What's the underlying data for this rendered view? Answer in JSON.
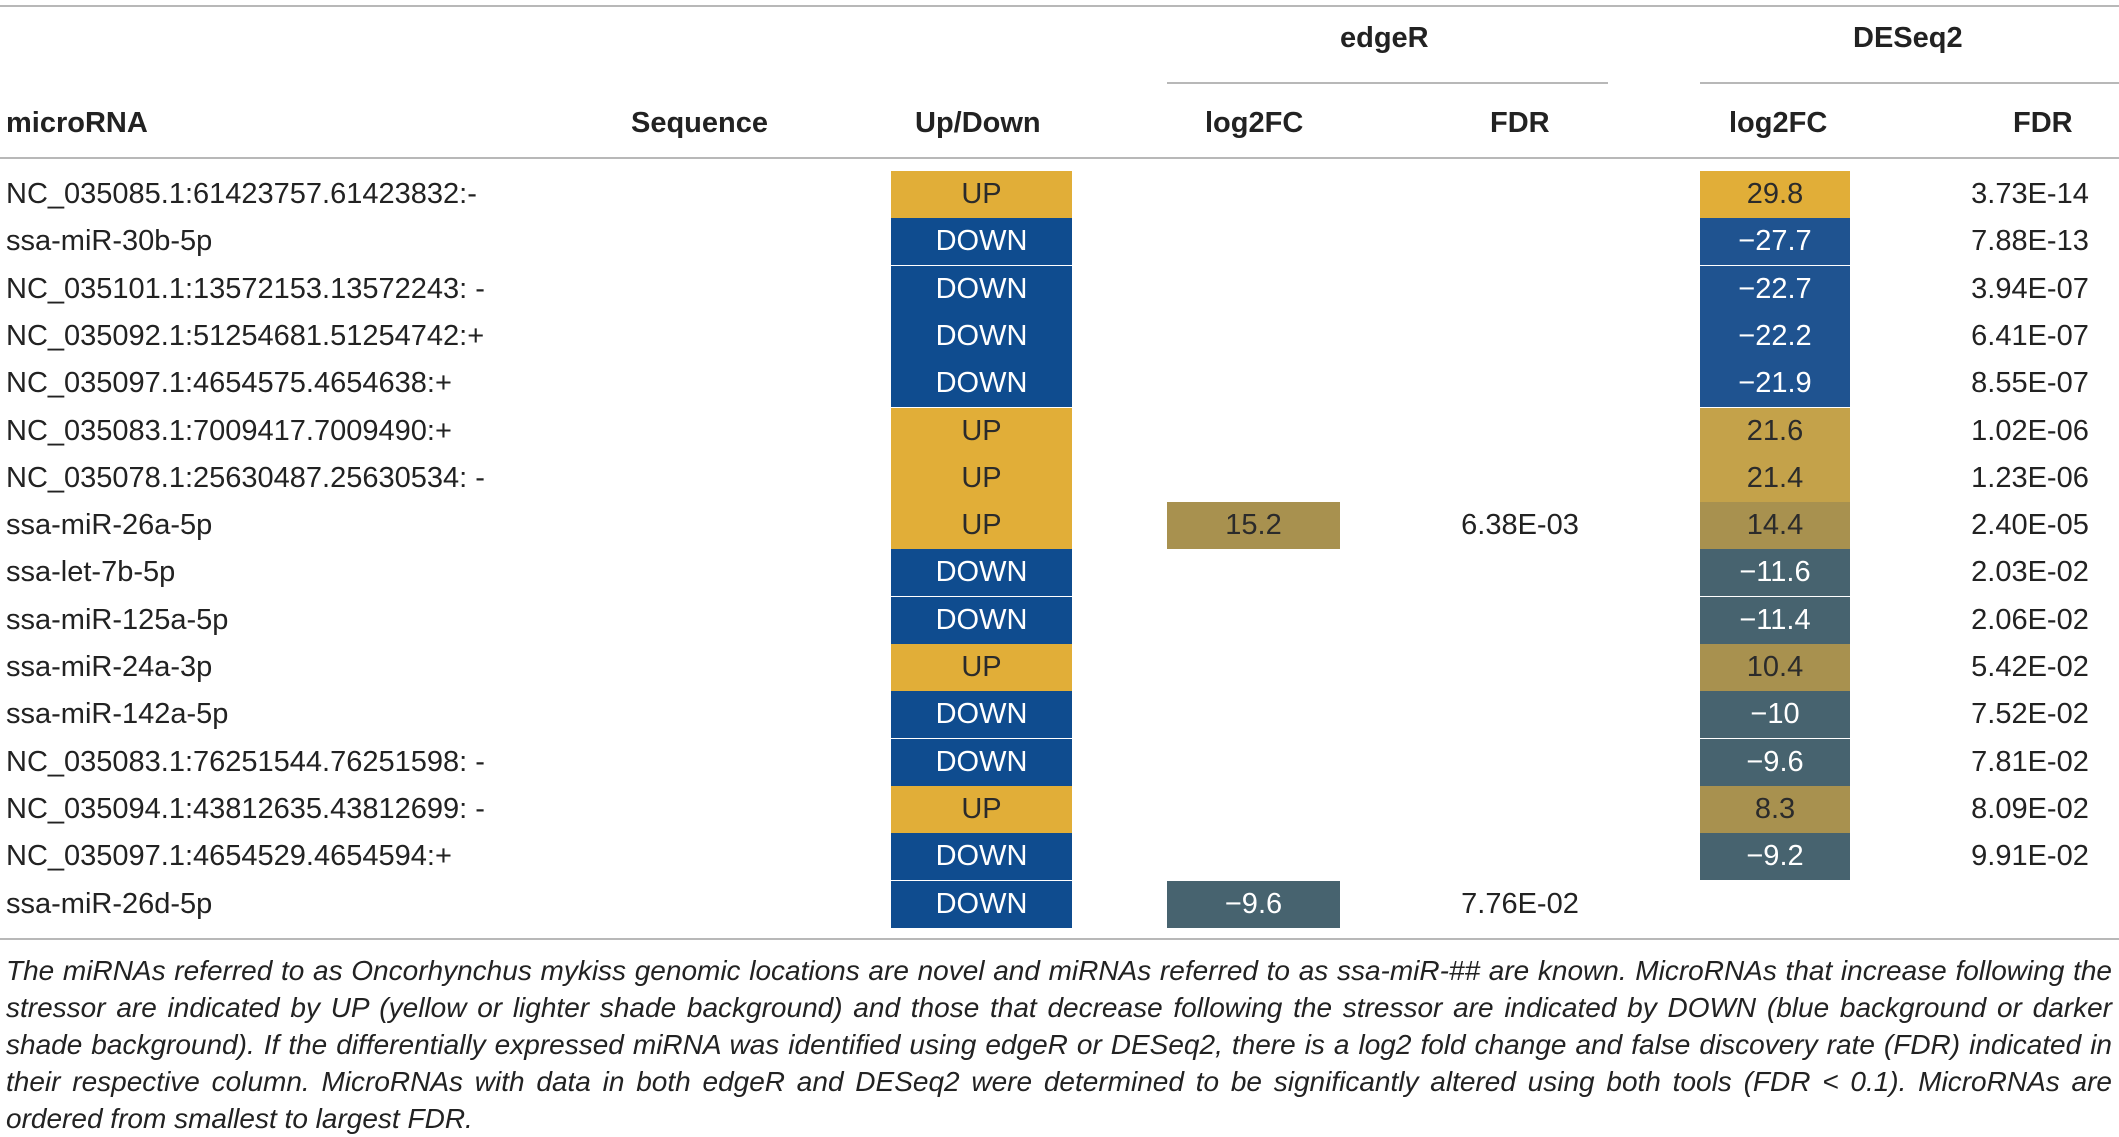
{
  "colors": {
    "up": "#e1ae38",
    "down": "#0f4c8f",
    "deseq_pos_strong": "#e1ae38",
    "deseq_pos_mid": "#c4a24a",
    "deseq_pos_light": "#a8914f",
    "deseq_neg_strong": "#1f5390",
    "deseq_neg_light": "#47636f",
    "edger_pos": "#a8914f",
    "edger_neg": "#47636f"
  },
  "header": {
    "group_edger": "edgeR",
    "group_deseq2": "DESeq2",
    "col_microrna": "microRNA",
    "col_sequence": "Sequence",
    "col_updown": "Up/Down",
    "col_edger_log2fc": "log2FC",
    "col_edger_fdr": "FDR",
    "col_deseq_log2fc": "log2FC",
    "col_deseq_fdr": "FDR"
  },
  "rows": [
    {
      "name": "NC_035085.1:61423757.61423832:-",
      "dir": "UP",
      "edger_log2fc": "",
      "edger_fdr": "",
      "deseq_log2fc": "29.8",
      "deseq_fdr": "3.73E-14",
      "deseq_shade": "deseq_pos_strong"
    },
    {
      "name": "ssa-miR-30b-5p",
      "dir": "DOWN",
      "edger_log2fc": "",
      "edger_fdr": "",
      "deseq_log2fc": "−27.7",
      "deseq_fdr": "7.88E-13",
      "deseq_shade": "deseq_neg_strong"
    },
    {
      "name": "NC_035101.1:13572153.13572243: -",
      "dir": "DOWN",
      "edger_log2fc": "",
      "edger_fdr": "",
      "deseq_log2fc": "−22.7",
      "deseq_fdr": "3.94E-07",
      "deseq_shade": "deseq_neg_strong"
    },
    {
      "name": "NC_035092.1:51254681.51254742:+",
      "dir": "DOWN",
      "edger_log2fc": "",
      "edger_fdr": "",
      "deseq_log2fc": "−22.2",
      "deseq_fdr": "6.41E-07",
      "deseq_shade": "deseq_neg_strong"
    },
    {
      "name": "NC_035097.1:4654575.4654638:+",
      "dir": "DOWN",
      "edger_log2fc": "",
      "edger_fdr": "",
      "deseq_log2fc": "−21.9",
      "deseq_fdr": "8.55E-07",
      "deseq_shade": "deseq_neg_strong"
    },
    {
      "name": "NC_035083.1:7009417.7009490:+",
      "dir": "UP",
      "edger_log2fc": "",
      "edger_fdr": "",
      "deseq_log2fc": "21.6",
      "deseq_fdr": "1.02E-06",
      "deseq_shade": "deseq_pos_mid"
    },
    {
      "name": "NC_035078.1:25630487.25630534: -",
      "dir": "UP",
      "edger_log2fc": "",
      "edger_fdr": "",
      "deseq_log2fc": "21.4",
      "deseq_fdr": "1.23E-06",
      "deseq_shade": "deseq_pos_mid"
    },
    {
      "name": "ssa-miR-26a-5p",
      "dir": "UP",
      "edger_log2fc": "15.2",
      "edger_fdr": "6.38E-03",
      "deseq_log2fc": "14.4",
      "deseq_fdr": "2.40E-05",
      "deseq_shade": "deseq_pos_light",
      "edger_shade": "edger_pos"
    },
    {
      "name": "ssa-let-7b-5p",
      "dir": "DOWN",
      "edger_log2fc": "",
      "edger_fdr": "",
      "deseq_log2fc": "−11.6",
      "deseq_fdr": "2.03E-02",
      "deseq_shade": "deseq_neg_light"
    },
    {
      "name": "ssa-miR-125a-5p",
      "dir": "DOWN",
      "edger_log2fc": "",
      "edger_fdr": "",
      "deseq_log2fc": "−11.4",
      "deseq_fdr": "2.06E-02",
      "deseq_shade": "deseq_neg_light"
    },
    {
      "name": "ssa-miR-24a-3p",
      "dir": "UP",
      "edger_log2fc": "",
      "edger_fdr": "",
      "deseq_log2fc": "10.4",
      "deseq_fdr": "5.42E-02",
      "deseq_shade": "deseq_pos_light"
    },
    {
      "name": "ssa-miR-142a-5p",
      "dir": "DOWN",
      "edger_log2fc": "",
      "edger_fdr": "",
      "deseq_log2fc": "−10",
      "deseq_fdr": "7.52E-02",
      "deseq_shade": "deseq_neg_light"
    },
    {
      "name": "NC_035083.1:76251544.76251598: -",
      "dir": "DOWN",
      "edger_log2fc": "",
      "edger_fdr": "",
      "deseq_log2fc": "−9.6",
      "deseq_fdr": "7.81E-02",
      "deseq_shade": "deseq_neg_light"
    },
    {
      "name": "NC_035094.1:43812635.43812699: -",
      "dir": "UP",
      "edger_log2fc": "",
      "edger_fdr": "",
      "deseq_log2fc": "8.3",
      "deseq_fdr": "8.09E-02",
      "deseq_shade": "deseq_pos_light"
    },
    {
      "name": "NC_035097.1:4654529.4654594:+",
      "dir": "DOWN",
      "edger_log2fc": "",
      "edger_fdr": "",
      "deseq_log2fc": "−9.2",
      "deseq_fdr": "9.91E-02",
      "deseq_shade": "deseq_neg_light"
    },
    {
      "name": "ssa-miR-26d-5p",
      "dir": "DOWN",
      "edger_log2fc": "−9.6",
      "edger_fdr": "7.76E-02",
      "deseq_log2fc": "",
      "deseq_fdr": "",
      "edger_shade": "edger_neg"
    }
  ],
  "caption": "The miRNAs referred to as Oncorhynchus mykiss genomic locations are novel and miRNAs referred to as ssa-miR-## are known. MicroRNAs that increase following the stressor are indicated by UP (yellow or lighter shade background) and those that decrease following the stressor are indicated by DOWN (blue background or darker shade background). If the differentially expressed miRNA was identified using edgeR or DESeq2, there is a log2 fold change and false discovery rate (FDR) indicated in their respective column. MicroRNAs with data in both edgeR and DESeq2 were determined to be significantly altered using both tools (FDR < 0.1). MicroRNAs are ordered from smallest to largest FDR."
}
